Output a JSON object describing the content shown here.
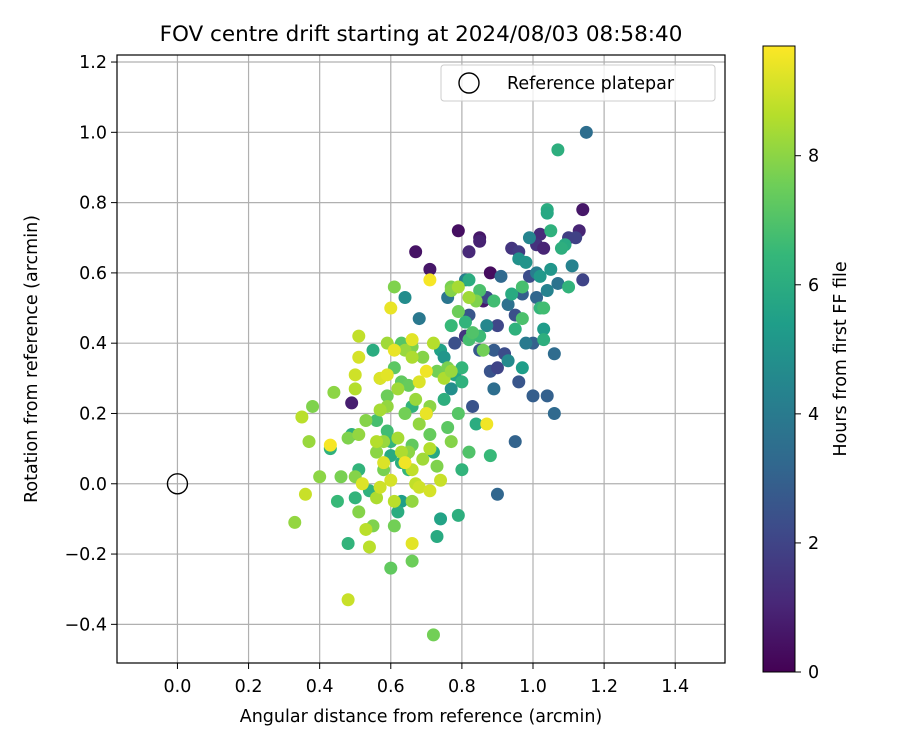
{
  "chart_data": {
    "type": "scatter",
    "title": "FOV centre drift starting at 2024/08/03 08:58:40",
    "xlabel": "Angular distance from reference (arcmin)",
    "ylabel": "Rotation from reference (arcmin)",
    "xlim": [
      -0.17,
      1.54
    ],
    "ylim": [
      -0.51,
      1.22
    ],
    "xticks": [
      0.0,
      0.2,
      0.4,
      0.6,
      0.8,
      1.0,
      1.2,
      1.4
    ],
    "xtick_labels": [
      "0.0",
      "0.2",
      "0.4",
      "0.6",
      "0.8",
      "1.0",
      "1.2",
      "1.4"
    ],
    "yticks": [
      -0.4,
      -0.2,
      0.0,
      0.2,
      0.4,
      0.6,
      0.8,
      1.0,
      1.2
    ],
    "ytick_labels": [
      "−0.4",
      "−0.2",
      "0.0",
      "0.2",
      "0.4",
      "0.6",
      "0.8",
      "1.0",
      "1.2"
    ],
    "grid": true,
    "legend": {
      "placement": "top-right",
      "entries": [
        "Reference platepar"
      ]
    },
    "reference_point": {
      "x": 0.0,
      "y": 0.0,
      "label": "Reference platepar"
    },
    "colorbar": {
      "label": "Hours from first FF file",
      "colormap": "viridis",
      "range": [
        0,
        9.7
      ],
      "ticks": [
        0,
        2,
        4,
        6,
        8
      ],
      "tick_labels": [
        "0",
        "2",
        "4",
        "6",
        "8"
      ]
    },
    "colors": {
      "viridis": [
        "#440154",
        "#482878",
        "#3e4989",
        "#31688e",
        "#26828e",
        "#1f9e89",
        "#35b779",
        "#6ece58",
        "#b5de2b",
        "#fde725"
      ]
    },
    "points": [
      {
        "x": 0.49,
        "y": 0.23,
        "h": 0.8
      },
      {
        "x": 0.67,
        "y": 0.66,
        "h": 0.5
      },
      {
        "x": 0.71,
        "y": 0.61,
        "h": 0.6
      },
      {
        "x": 0.79,
        "y": 0.72,
        "h": 0.4
      },
      {
        "x": 0.85,
        "y": 0.7,
        "h": 0.6
      },
      {
        "x": 0.85,
        "y": 0.69,
        "h": 0.9
      },
      {
        "x": 0.82,
        "y": 0.66,
        "h": 1.1
      },
      {
        "x": 0.88,
        "y": 0.6,
        "h": 0.3
      },
      {
        "x": 0.86,
        "y": 0.52,
        "h": 0.7
      },
      {
        "x": 1.14,
        "y": 0.78,
        "h": 0.6
      },
      {
        "x": 1.13,
        "y": 0.72,
        "h": 1.0
      },
      {
        "x": 1.02,
        "y": 0.71,
        "h": 1.2
      },
      {
        "x": 1.01,
        "y": 0.68,
        "h": 1.4
      },
      {
        "x": 1.03,
        "y": 0.67,
        "h": 1.0
      },
      {
        "x": 0.94,
        "y": 0.67,
        "h": 1.5
      },
      {
        "x": 0.96,
        "y": 0.66,
        "h": 1.7
      },
      {
        "x": 1.1,
        "y": 0.7,
        "h": 1.8
      },
      {
        "x": 1.12,
        "y": 0.7,
        "h": 1.9
      },
      {
        "x": 0.81,
        "y": 0.42,
        "h": 1.5
      },
      {
        "x": 1.14,
        "y": 0.58,
        "h": 2.0
      },
      {
        "x": 0.99,
        "y": 0.59,
        "h": 2.3
      },
      {
        "x": 0.87,
        "y": 0.53,
        "h": 2.2
      },
      {
        "x": 0.95,
        "y": 0.48,
        "h": 2.4
      },
      {
        "x": 0.9,
        "y": 0.45,
        "h": 2.1
      },
      {
        "x": 0.82,
        "y": 0.48,
        "h": 2.6
      },
      {
        "x": 0.78,
        "y": 0.4,
        "h": 2.4
      },
      {
        "x": 0.85,
        "y": 0.38,
        "h": 2.7
      },
      {
        "x": 0.89,
        "y": 0.38,
        "h": 2.8
      },
      {
        "x": 0.92,
        "y": 0.37,
        "h": 2.3
      },
      {
        "x": 0.88,
        "y": 0.32,
        "h": 2.5
      },
      {
        "x": 0.9,
        "y": 0.33,
        "h": 2.0
      },
      {
        "x": 0.83,
        "y": 0.22,
        "h": 2.5
      },
      {
        "x": 0.96,
        "y": 0.29,
        "h": 2.6
      },
      {
        "x": 1.0,
        "y": 0.25,
        "h": 2.9
      },
      {
        "x": 1.04,
        "y": 0.25,
        "h": 3.0
      },
      {
        "x": 0.95,
        "y": 0.12,
        "h": 3.1
      },
      {
        "x": 0.9,
        "y": -0.03,
        "h": 3.2
      },
      {
        "x": 1.06,
        "y": 0.2,
        "h": 3.3
      },
      {
        "x": 1.06,
        "y": 0.37,
        "h": 3.4
      },
      {
        "x": 1.0,
        "y": 0.4,
        "h": 3.0
      },
      {
        "x": 1.01,
        "y": 0.53,
        "h": 3.2
      },
      {
        "x": 0.97,
        "y": 0.54,
        "h": 2.9
      },
      {
        "x": 0.93,
        "y": 0.51,
        "h": 3.6
      },
      {
        "x": 0.91,
        "y": 0.59,
        "h": 3.3
      },
      {
        "x": 1.07,
        "y": 0.57,
        "h": 3.7
      },
      {
        "x": 1.15,
        "y": 1.0,
        "h": 3.5
      },
      {
        "x": 0.76,
        "y": 0.53,
        "h": 3.8
      },
      {
        "x": 0.68,
        "y": 0.47,
        "h": 3.9
      },
      {
        "x": 0.89,
        "y": 0.27,
        "h": 3.5
      },
      {
        "x": 0.98,
        "y": 0.4,
        "h": 4.0
      },
      {
        "x": 0.81,
        "y": 0.58,
        "h": 4.2
      },
      {
        "x": 1.11,
        "y": 0.62,
        "h": 4.3
      },
      {
        "x": 1.01,
        "y": 0.6,
        "h": 4.1
      },
      {
        "x": 0.99,
        "y": 0.7,
        "h": 4.4
      },
      {
        "x": 0.87,
        "y": 0.45,
        "h": 4.5
      },
      {
        "x": 0.93,
        "y": 0.35,
        "h": 4.6
      },
      {
        "x": 0.64,
        "y": 0.53,
        "h": 4.7
      },
      {
        "x": 0.77,
        "y": 0.27,
        "h": 4.8
      },
      {
        "x": 1.04,
        "y": 0.55,
        "h": 4.3
      },
      {
        "x": 0.96,
        "y": 0.64,
        "h": 4.9
      },
      {
        "x": 0.98,
        "y": 0.63,
        "h": 5.0
      },
      {
        "x": 1.05,
        "y": 0.61,
        "h": 5.1
      },
      {
        "x": 1.02,
        "y": 0.59,
        "h": 5.2
      },
      {
        "x": 1.03,
        "y": 0.44,
        "h": 5.3
      },
      {
        "x": 0.97,
        "y": 0.33,
        "h": 5.4
      },
      {
        "x": 0.74,
        "y": 0.38,
        "h": 5.5
      },
      {
        "x": 0.75,
        "y": 0.36,
        "h": 5.1
      },
      {
        "x": 0.78,
        "y": 0.31,
        "h": 5.7
      },
      {
        "x": 0.72,
        "y": 0.09,
        "h": 5.8
      },
      {
        "x": 0.74,
        "y": -0.1,
        "h": 5.6
      },
      {
        "x": 0.73,
        "y": -0.15,
        "h": 5.9
      },
      {
        "x": 0.63,
        "y": -0.05,
        "h": 5.4
      },
      {
        "x": 1.09,
        "y": 0.68,
        "h": 5.9
      },
      {
        "x": 1.04,
        "y": 0.78,
        "h": 6.0
      },
      {
        "x": 1.07,
        "y": 0.95,
        "h": 6.1
      },
      {
        "x": 1.04,
        "y": 0.77,
        "h": 5.8
      },
      {
        "x": 1.05,
        "y": 0.72,
        "h": 6.2
      },
      {
        "x": 1.08,
        "y": 0.67,
        "h": 6.1
      },
      {
        "x": 1.1,
        "y": 0.56,
        "h": 6.3
      },
      {
        "x": 1.02,
        "y": 0.5,
        "h": 6.4
      },
      {
        "x": 1.03,
        "y": 0.41,
        "h": 6.1
      },
      {
        "x": 0.95,
        "y": 0.44,
        "h": 6.2
      },
      {
        "x": 0.94,
        "y": 0.54,
        "h": 5.9
      },
      {
        "x": 0.82,
        "y": 0.58,
        "h": 6.0
      },
      {
        "x": 0.81,
        "y": 0.46,
        "h": 6.3
      },
      {
        "x": 0.77,
        "y": 0.45,
        "h": 6.5
      },
      {
        "x": 0.8,
        "y": 0.33,
        "h": 6.4
      },
      {
        "x": 0.8,
        "y": 0.29,
        "h": 6.2
      },
      {
        "x": 0.75,
        "y": 0.24,
        "h": 6.1
      },
      {
        "x": 0.84,
        "y": 0.17,
        "h": 6.0
      },
      {
        "x": 0.88,
        "y": 0.08,
        "h": 6.5
      },
      {
        "x": 0.8,
        "y": 0.04,
        "h": 6.3
      },
      {
        "x": 0.79,
        "y": -0.09,
        "h": 6.1
      },
      {
        "x": 0.6,
        "y": 0.08,
        "h": 5.9
      },
      {
        "x": 0.55,
        "y": 0.38,
        "h": 6.0
      },
      {
        "x": 0.48,
        "y": -0.17,
        "h": 6.3
      },
      {
        "x": 0.43,
        "y": 0.1,
        "h": 6.2
      },
      {
        "x": 0.49,
        "y": 0.14,
        "h": 6.1
      },
      {
        "x": 0.65,
        "y": 0.04,
        "h": 6.4
      },
      {
        "x": 0.54,
        "y": -0.02,
        "h": 6.2
      },
      {
        "x": 0.62,
        "y": -0.08,
        "h": 6.0
      },
      {
        "x": 0.5,
        "y": -0.04,
        "h": 6.3
      },
      {
        "x": 0.45,
        "y": -0.05,
        "h": 6.5
      },
      {
        "x": 0.51,
        "y": 0.04,
        "h": 6.3
      },
      {
        "x": 0.6,
        "y": 0.12,
        "h": 6.4
      },
      {
        "x": 0.63,
        "y": 0.06,
        "h": 6.0
      },
      {
        "x": 0.66,
        "y": 0.22,
        "h": 6.3
      },
      {
        "x": 0.7,
        "y": 0.2,
        "h": 6.6
      },
      {
        "x": 0.56,
        "y": 0.18,
        "h": 6.8
      },
      {
        "x": 0.59,
        "y": 0.15,
        "h": 6.7
      },
      {
        "x": 0.82,
        "y": 0.41,
        "h": 6.8
      },
      {
        "x": 0.85,
        "y": 0.42,
        "h": 6.6
      },
      {
        "x": 0.85,
        "y": 0.55,
        "h": 6.9
      },
      {
        "x": 0.89,
        "y": 0.52,
        "h": 6.7
      },
      {
        "x": 0.97,
        "y": 0.47,
        "h": 6.9
      },
      {
        "x": 0.97,
        "y": 0.56,
        "h": 6.8
      },
      {
        "x": 1.03,
        "y": 0.5,
        "h": 6.7
      },
      {
        "x": 0.83,
        "y": 0.43,
        "h": 7.0
      },
      {
        "x": 0.79,
        "y": 0.2,
        "h": 7.1
      },
      {
        "x": 0.82,
        "y": 0.09,
        "h": 7.0
      },
      {
        "x": 0.76,
        "y": 0.16,
        "h": 7.2
      },
      {
        "x": 0.63,
        "y": 0.4,
        "h": 7.1
      },
      {
        "x": 0.63,
        "y": 0.29,
        "h": 7.3
      },
      {
        "x": 0.65,
        "y": 0.28,
        "h": 7.4
      },
      {
        "x": 0.61,
        "y": 0.33,
        "h": 7.2
      },
      {
        "x": 0.59,
        "y": 0.25,
        "h": 7.5
      },
      {
        "x": 0.66,
        "y": 0.11,
        "h": 7.3
      },
      {
        "x": 0.64,
        "y": 0.2,
        "h": 7.6
      },
      {
        "x": 0.71,
        "y": 0.14,
        "h": 7.4
      },
      {
        "x": 0.66,
        "y": -0.22,
        "h": 7.5
      },
      {
        "x": 0.6,
        "y": -0.24,
        "h": 7.3
      },
      {
        "x": 0.72,
        "y": -0.43,
        "h": 7.6
      },
      {
        "x": 0.61,
        "y": 0.56,
        "h": 7.8
      },
      {
        "x": 0.57,
        "y": 0.3,
        "h": 7.7
      },
      {
        "x": 0.73,
        "y": 0.32,
        "h": 7.6
      },
      {
        "x": 0.69,
        "y": 0.36,
        "h": 7.9
      },
      {
        "x": 0.66,
        "y": 0.39,
        "h": 7.8
      },
      {
        "x": 0.77,
        "y": 0.56,
        "h": 7.7
      },
      {
        "x": 0.79,
        "y": 0.49,
        "h": 7.5
      },
      {
        "x": 0.77,
        "y": 0.55,
        "h": 7.9
      },
      {
        "x": 0.84,
        "y": 0.52,
        "h": 7.8
      },
      {
        "x": 0.86,
        "y": 0.38,
        "h": 7.6
      },
      {
        "x": 0.76,
        "y": 0.33,
        "h": 7.7
      },
      {
        "x": 0.71,
        "y": 0.22,
        "h": 8.0
      },
      {
        "x": 0.77,
        "y": 0.12,
        "h": 7.9
      },
      {
        "x": 0.73,
        "y": 0.05,
        "h": 7.8
      },
      {
        "x": 0.64,
        "y": 0.08,
        "h": 7.6
      },
      {
        "x": 0.58,
        "y": 0.04,
        "h": 7.7
      },
      {
        "x": 0.56,
        "y": 0.09,
        "h": 8.0
      },
      {
        "x": 0.53,
        "y": 0.18,
        "h": 7.9
      },
      {
        "x": 0.48,
        "y": 0.13,
        "h": 7.8
      },
      {
        "x": 0.46,
        "y": 0.02,
        "h": 7.7
      },
      {
        "x": 0.51,
        "y": -0.08,
        "h": 7.9
      },
      {
        "x": 0.55,
        "y": -0.12,
        "h": 7.8
      },
      {
        "x": 0.61,
        "y": -0.12,
        "h": 7.6
      },
      {
        "x": 0.66,
        "y": -0.05,
        "h": 8.1
      },
      {
        "x": 0.65,
        "y": 0.09,
        "h": 8.0
      },
      {
        "x": 0.58,
        "y": 0.12,
        "h": 8.2
      },
      {
        "x": 0.51,
        "y": 0.14,
        "h": 8.1
      },
      {
        "x": 0.5,
        "y": 0.02,
        "h": 7.9
      },
      {
        "x": 0.44,
        "y": 0.26,
        "h": 8.0
      },
      {
        "x": 0.38,
        "y": 0.22,
        "h": 7.8
      },
      {
        "x": 0.37,
        "y": 0.12,
        "h": 8.2
      },
      {
        "x": 0.33,
        "y": -0.11,
        "h": 8.1
      },
      {
        "x": 0.4,
        "y": 0.02,
        "h": 8.0
      },
      {
        "x": 0.59,
        "y": 0.4,
        "h": 8.3
      },
      {
        "x": 0.64,
        "y": 0.38,
        "h": 8.2
      },
      {
        "x": 0.59,
        "y": 0.22,
        "h": 8.1
      },
      {
        "x": 0.57,
        "y": 0.21,
        "h": 8.4
      },
      {
        "x": 0.62,
        "y": 0.27,
        "h": 8.3
      },
      {
        "x": 0.67,
        "y": 0.24,
        "h": 8.2
      },
      {
        "x": 0.68,
        "y": 0.17,
        "h": 8.1
      },
      {
        "x": 0.69,
        "y": 0.07,
        "h": 8.3
      },
      {
        "x": 0.75,
        "y": 0.3,
        "h": 8.5
      },
      {
        "x": 0.79,
        "y": 0.56,
        "h": 8.4
      },
      {
        "x": 0.82,
        "y": 0.53,
        "h": 8.3
      },
      {
        "x": 0.77,
        "y": 0.32,
        "h": 8.2
      },
      {
        "x": 0.72,
        "y": 0.4,
        "h": 8.6
      },
      {
        "x": 0.66,
        "y": 0.36,
        "h": 8.5
      },
      {
        "x": 0.62,
        "y": 0.13,
        "h": 8.4
      },
      {
        "x": 0.56,
        "y": 0.12,
        "h": 8.6
      },
      {
        "x": 0.56,
        "y": -0.04,
        "h": 8.5
      },
      {
        "x": 0.53,
        "y": -0.13,
        "h": 8.7
      },
      {
        "x": 0.5,
        "y": 0.27,
        "h": 8.6
      },
      {
        "x": 0.51,
        "y": 0.42,
        "h": 8.8
      },
      {
        "x": 0.35,
        "y": 0.19,
        "h": 8.7
      },
      {
        "x": 0.63,
        "y": 0.09,
        "h": 8.5
      },
      {
        "x": 0.66,
        "y": 0.04,
        "h": 8.8
      },
      {
        "x": 0.71,
        "y": 0.1,
        "h": 8.6
      },
      {
        "x": 0.54,
        "y": -0.18,
        "h": 8.7
      },
      {
        "x": 0.48,
        "y": -0.33,
        "h": 8.9
      },
      {
        "x": 0.36,
        "y": -0.03,
        "h": 8.9
      },
      {
        "x": 0.67,
        "y": 0.0,
        "h": 8.8
      },
      {
        "x": 0.74,
        "y": 0.01,
        "h": 8.9
      },
      {
        "x": 0.61,
        "y": -0.05,
        "h": 8.7
      },
      {
        "x": 0.68,
        "y": -0.01,
        "h": 9.0
      },
      {
        "x": 0.71,
        "y": -0.02,
        "h": 9.1
      },
      {
        "x": 0.5,
        "y": 0.31,
        "h": 9.0
      },
      {
        "x": 0.51,
        "y": 0.36,
        "h": 9.1
      },
      {
        "x": 0.52,
        "y": 0.0,
        "h": 9.2
      },
      {
        "x": 0.57,
        "y": -0.01,
        "h": 9.0
      },
      {
        "x": 0.6,
        "y": 0.01,
        "h": 9.1
      },
      {
        "x": 0.57,
        "y": 0.3,
        "h": 9.2
      },
      {
        "x": 0.59,
        "y": 0.31,
        "h": 9.3
      },
      {
        "x": 0.58,
        "y": 0.06,
        "h": 9.2
      },
      {
        "x": 0.66,
        "y": -0.17,
        "h": 9.3
      },
      {
        "x": 0.6,
        "y": 0.5,
        "h": 9.4
      },
      {
        "x": 0.7,
        "y": 0.32,
        "h": 9.5
      },
      {
        "x": 0.71,
        "y": 0.58,
        "h": 9.6
      },
      {
        "x": 0.7,
        "y": 0.2,
        "h": 9.4
      },
      {
        "x": 0.87,
        "y": 0.17,
        "h": 9.5
      },
      {
        "x": 0.43,
        "y": 0.11,
        "h": 9.6
      },
      {
        "x": 0.66,
        "y": 0.41,
        "h": 9.3
      },
      {
        "x": 0.68,
        "y": 0.29,
        "h": 9.2
      },
      {
        "x": 0.61,
        "y": 0.38,
        "h": 9.4
      },
      {
        "x": 0.64,
        "y": 0.06,
        "h": 9.5
      }
    ]
  }
}
